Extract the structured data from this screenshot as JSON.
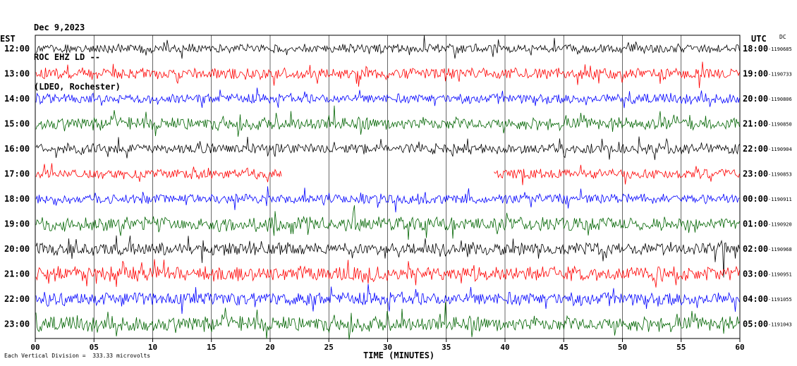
{
  "header": {
    "date": "Dec 9,2023",
    "station": "ROC EHZ LD --",
    "location": "(LDEO, Rochester)"
  },
  "left_timezone": "EST",
  "right_timezone": "UTC",
  "dc_label": "DC",
  "footer_scale": "Each Vertical Division =  333.33 microvolts",
  "chart_data": {
    "type": "line",
    "title": "ROC EHZ LD --",
    "xlabel": "TIME (MINUTES)",
    "xlim": [
      0,
      60
    ],
    "x_ticks": [
      "00",
      "05",
      "10",
      "15",
      "20",
      "25",
      "30",
      "35",
      "40",
      "45",
      "50",
      "55",
      "60"
    ],
    "grid": true,
    "series_colors": [
      "#000000",
      "#ff0000",
      "#0000ff",
      "#006400"
    ],
    "rows": [
      {
        "local": "12:00",
        "utc": "18:00",
        "count": "1190685",
        "color": "#000000",
        "amp": 7,
        "gap": null
      },
      {
        "local": "13:00",
        "utc": "19:00",
        "count": "1190733",
        "color": "#ff0000",
        "amp": 9,
        "gap": null
      },
      {
        "local": "14:00",
        "utc": "20:00",
        "count": "1190806",
        "color": "#0000ff",
        "amp": 8,
        "gap": null
      },
      {
        "local": "15:00",
        "utc": "21:00",
        "count": "1190850",
        "color": "#006400",
        "amp": 10,
        "gap": null
      },
      {
        "local": "16:00",
        "utc": "22:00",
        "count": "1190904",
        "color": "#000000",
        "amp": 8,
        "gap": null
      },
      {
        "local": "17:00",
        "utc": "23:00",
        "count": "1190853",
        "color": "#ff0000",
        "amp": 8,
        "gap": [
          21,
          39
        ]
      },
      {
        "local": "18:00",
        "utc": "00:00",
        "count": "1190911",
        "color": "#0000ff",
        "amp": 8,
        "gap": null
      },
      {
        "local": "19:00",
        "utc": "01:00",
        "count": "1190920",
        "color": "#006400",
        "amp": 11,
        "gap": null
      },
      {
        "local": "20:00",
        "utc": "02:00",
        "count": "1190968",
        "color": "#000000",
        "amp": 10,
        "gap": null
      },
      {
        "local": "21:00",
        "utc": "03:00",
        "count": "1190951",
        "color": "#ff0000",
        "amp": 12,
        "gap": null
      },
      {
        "local": "22:00",
        "utc": "04:00",
        "count": "1191055",
        "color": "#0000ff",
        "amp": 11,
        "gap": null
      },
      {
        "local": "23:00",
        "utc": "05:00",
        "count": "1191043",
        "color": "#006400",
        "amp": 12,
        "gap": null
      }
    ]
  }
}
